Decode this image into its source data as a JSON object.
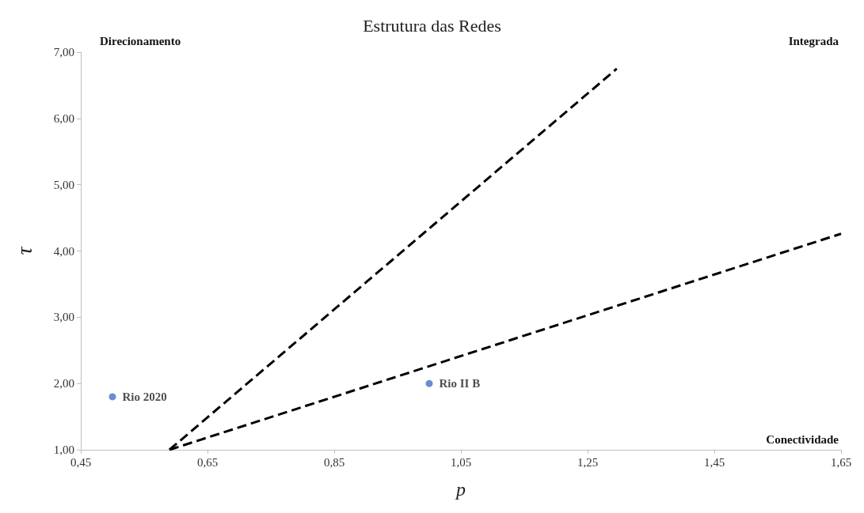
{
  "chart_data": {
    "type": "scatter",
    "title": "Estrutura das Redes",
    "xlabel": "p",
    "ylabel": "τ",
    "xlim": [
      0.45,
      1.65
    ],
    "xticks": [
      {
        "value": 0.45,
        "label": "0,45"
      },
      {
        "value": 0.65,
        "label": "0,65"
      },
      {
        "value": 0.85,
        "label": "0,85"
      },
      {
        "value": 1.05,
        "label": "1,05"
      },
      {
        "value": 1.25,
        "label": "1,25"
      },
      {
        "value": 1.45,
        "label": "1,45"
      },
      {
        "value": 1.65,
        "label": "1,65"
      }
    ],
    "ylim": [
      1,
      7
    ],
    "yticks": [
      {
        "value": 1,
        "label": "1,00"
      },
      {
        "value": 2,
        "label": "2,00"
      },
      {
        "value": 3,
        "label": "3,00"
      },
      {
        "value": 4,
        "label": "4,00"
      },
      {
        "value": 5,
        "label": "5,00"
      },
      {
        "value": 6,
        "label": "6,00"
      },
      {
        "value": 7,
        "label": "7,00"
      }
    ],
    "grid": false,
    "legend": false,
    "marker": "circle",
    "series": [
      {
        "name": "Rio 2020",
        "color": "#4472c4",
        "x": [
          0.5
        ],
        "values": [
          1.8
        ]
      },
      {
        "name": "Rio II B",
        "color": "#4472c4",
        "x": [
          1.0
        ],
        "values": [
          2.0
        ]
      },
      {
        "type": "line",
        "color": "#000000",
        "line_style": "dashed",
        "marker": "none",
        "x": [
          0.59,
          1.296
        ],
        "values": [
          1.0,
          6.75
        ]
      },
      {
        "type": "line",
        "color": "#000000",
        "line_style": "dashed",
        "marker": "none",
        "x": [
          0.59,
          1.65
        ],
        "values": [
          1.0,
          4.26
        ]
      }
    ],
    "annotations": [
      "Direcionamento",
      "Integrada",
      "Conectividade"
    ]
  }
}
